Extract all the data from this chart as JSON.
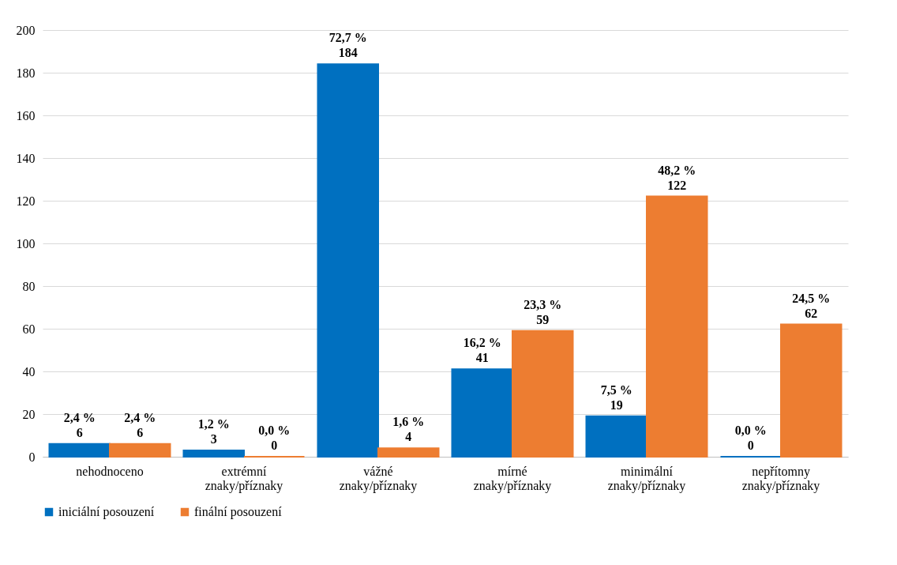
{
  "chart_data": {
    "type": "bar",
    "categories": [
      "nehodnoceno",
      "extrémní znaky/příznaky",
      "vážné znaky/příznaky",
      "mírné znaky/příznaky",
      "minimální znaky/příznaky",
      "nepřítomny znaky/příznaky"
    ],
    "series": [
      {
        "name": "iniciální posouzení",
        "color": "#0070c0",
        "values": [
          6,
          3,
          184,
          41,
          19,
          0
        ],
        "value_labels": [
          "2,4 %\n6",
          "1,2 %\n3",
          "72,7 %\n184",
          "16,2 %\n41",
          "7,5 %\n19",
          "0,0 %\n0"
        ]
      },
      {
        "name": "finální posouzení",
        "color": "#ed7d31",
        "values": [
          6,
          0,
          4,
          59,
          122,
          62
        ],
        "value_labels": [
          "2,4 %\n6",
          "0,0 %\n0",
          "1,6 %\n4",
          "23,3 %\n59",
          "48,2 %\n122",
          "24,5 %\n62"
        ]
      }
    ],
    "ylim": [
      0,
      200
    ],
    "yticks": [
      0,
      20,
      40,
      60,
      80,
      100,
      120,
      140,
      160,
      180,
      200
    ],
    "grid": "y",
    "legend": "bottom"
  }
}
